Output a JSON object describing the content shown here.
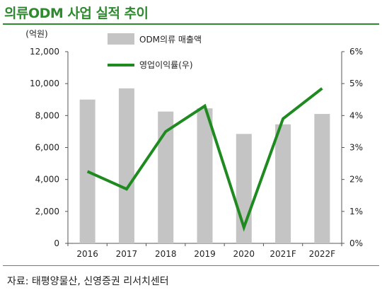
{
  "header": {
    "title": "의류ODM 사업 실적 추이",
    "source": "자료: 태평양물산, 신영증권 리서치센터"
  },
  "chart_data": {
    "type": "bar",
    "categories": [
      "2016",
      "2017",
      "2018",
      "2019",
      "2020",
      "2021F",
      "2022F"
    ],
    "left_unit": "(억원)",
    "series": [
      {
        "name": "ODM의류 매출액",
        "type": "bar",
        "axis": "left",
        "color": "#c4c4c4",
        "values": [
          9000,
          9700,
          8250,
          8450,
          6850,
          7450,
          8100
        ]
      },
      {
        "name": "영업이익률(우)",
        "type": "line",
        "axis": "right",
        "color": "#1f8a1f",
        "values": [
          2.25,
          1.7,
          3.5,
          4.3,
          0.5,
          3.9,
          4.85
        ]
      }
    ],
    "y_left": {
      "min": 0,
      "max": 12000,
      "step": 2000,
      "ticks": [
        "0",
        "2,000",
        "4,000",
        "6,000",
        "8,000",
        "10,000",
        "12,000"
      ]
    },
    "y_right": {
      "min": 0,
      "max": 6,
      "step": 1,
      "ticks": [
        "0%",
        "1%",
        "2%",
        "3%",
        "4%",
        "5%",
        "6%"
      ]
    },
    "legend_position": "top-center",
    "grid": false
  }
}
